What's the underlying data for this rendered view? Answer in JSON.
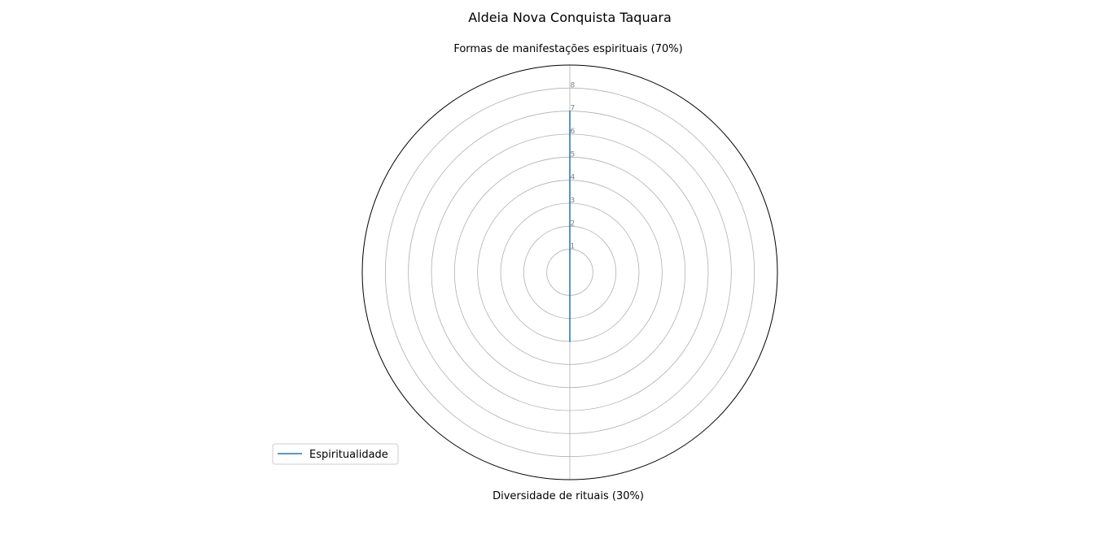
{
  "chart_data": {
    "type": "radar",
    "title": "Aldeia Nova Conquista Taquara",
    "axes": [
      "Formas de manifestações espirituais (70%)",
      "Diversidade de rituais (30%)"
    ],
    "series": [
      {
        "name": "Espiritualidade",
        "values": [
          7,
          3
        ],
        "color": "#1f77b4"
      }
    ],
    "rlim": [
      0,
      9
    ],
    "rticks": [
      "1",
      "2",
      "3",
      "4",
      "5",
      "6",
      "7",
      "8"
    ],
    "grid": true,
    "legend_position": "lower-left"
  }
}
